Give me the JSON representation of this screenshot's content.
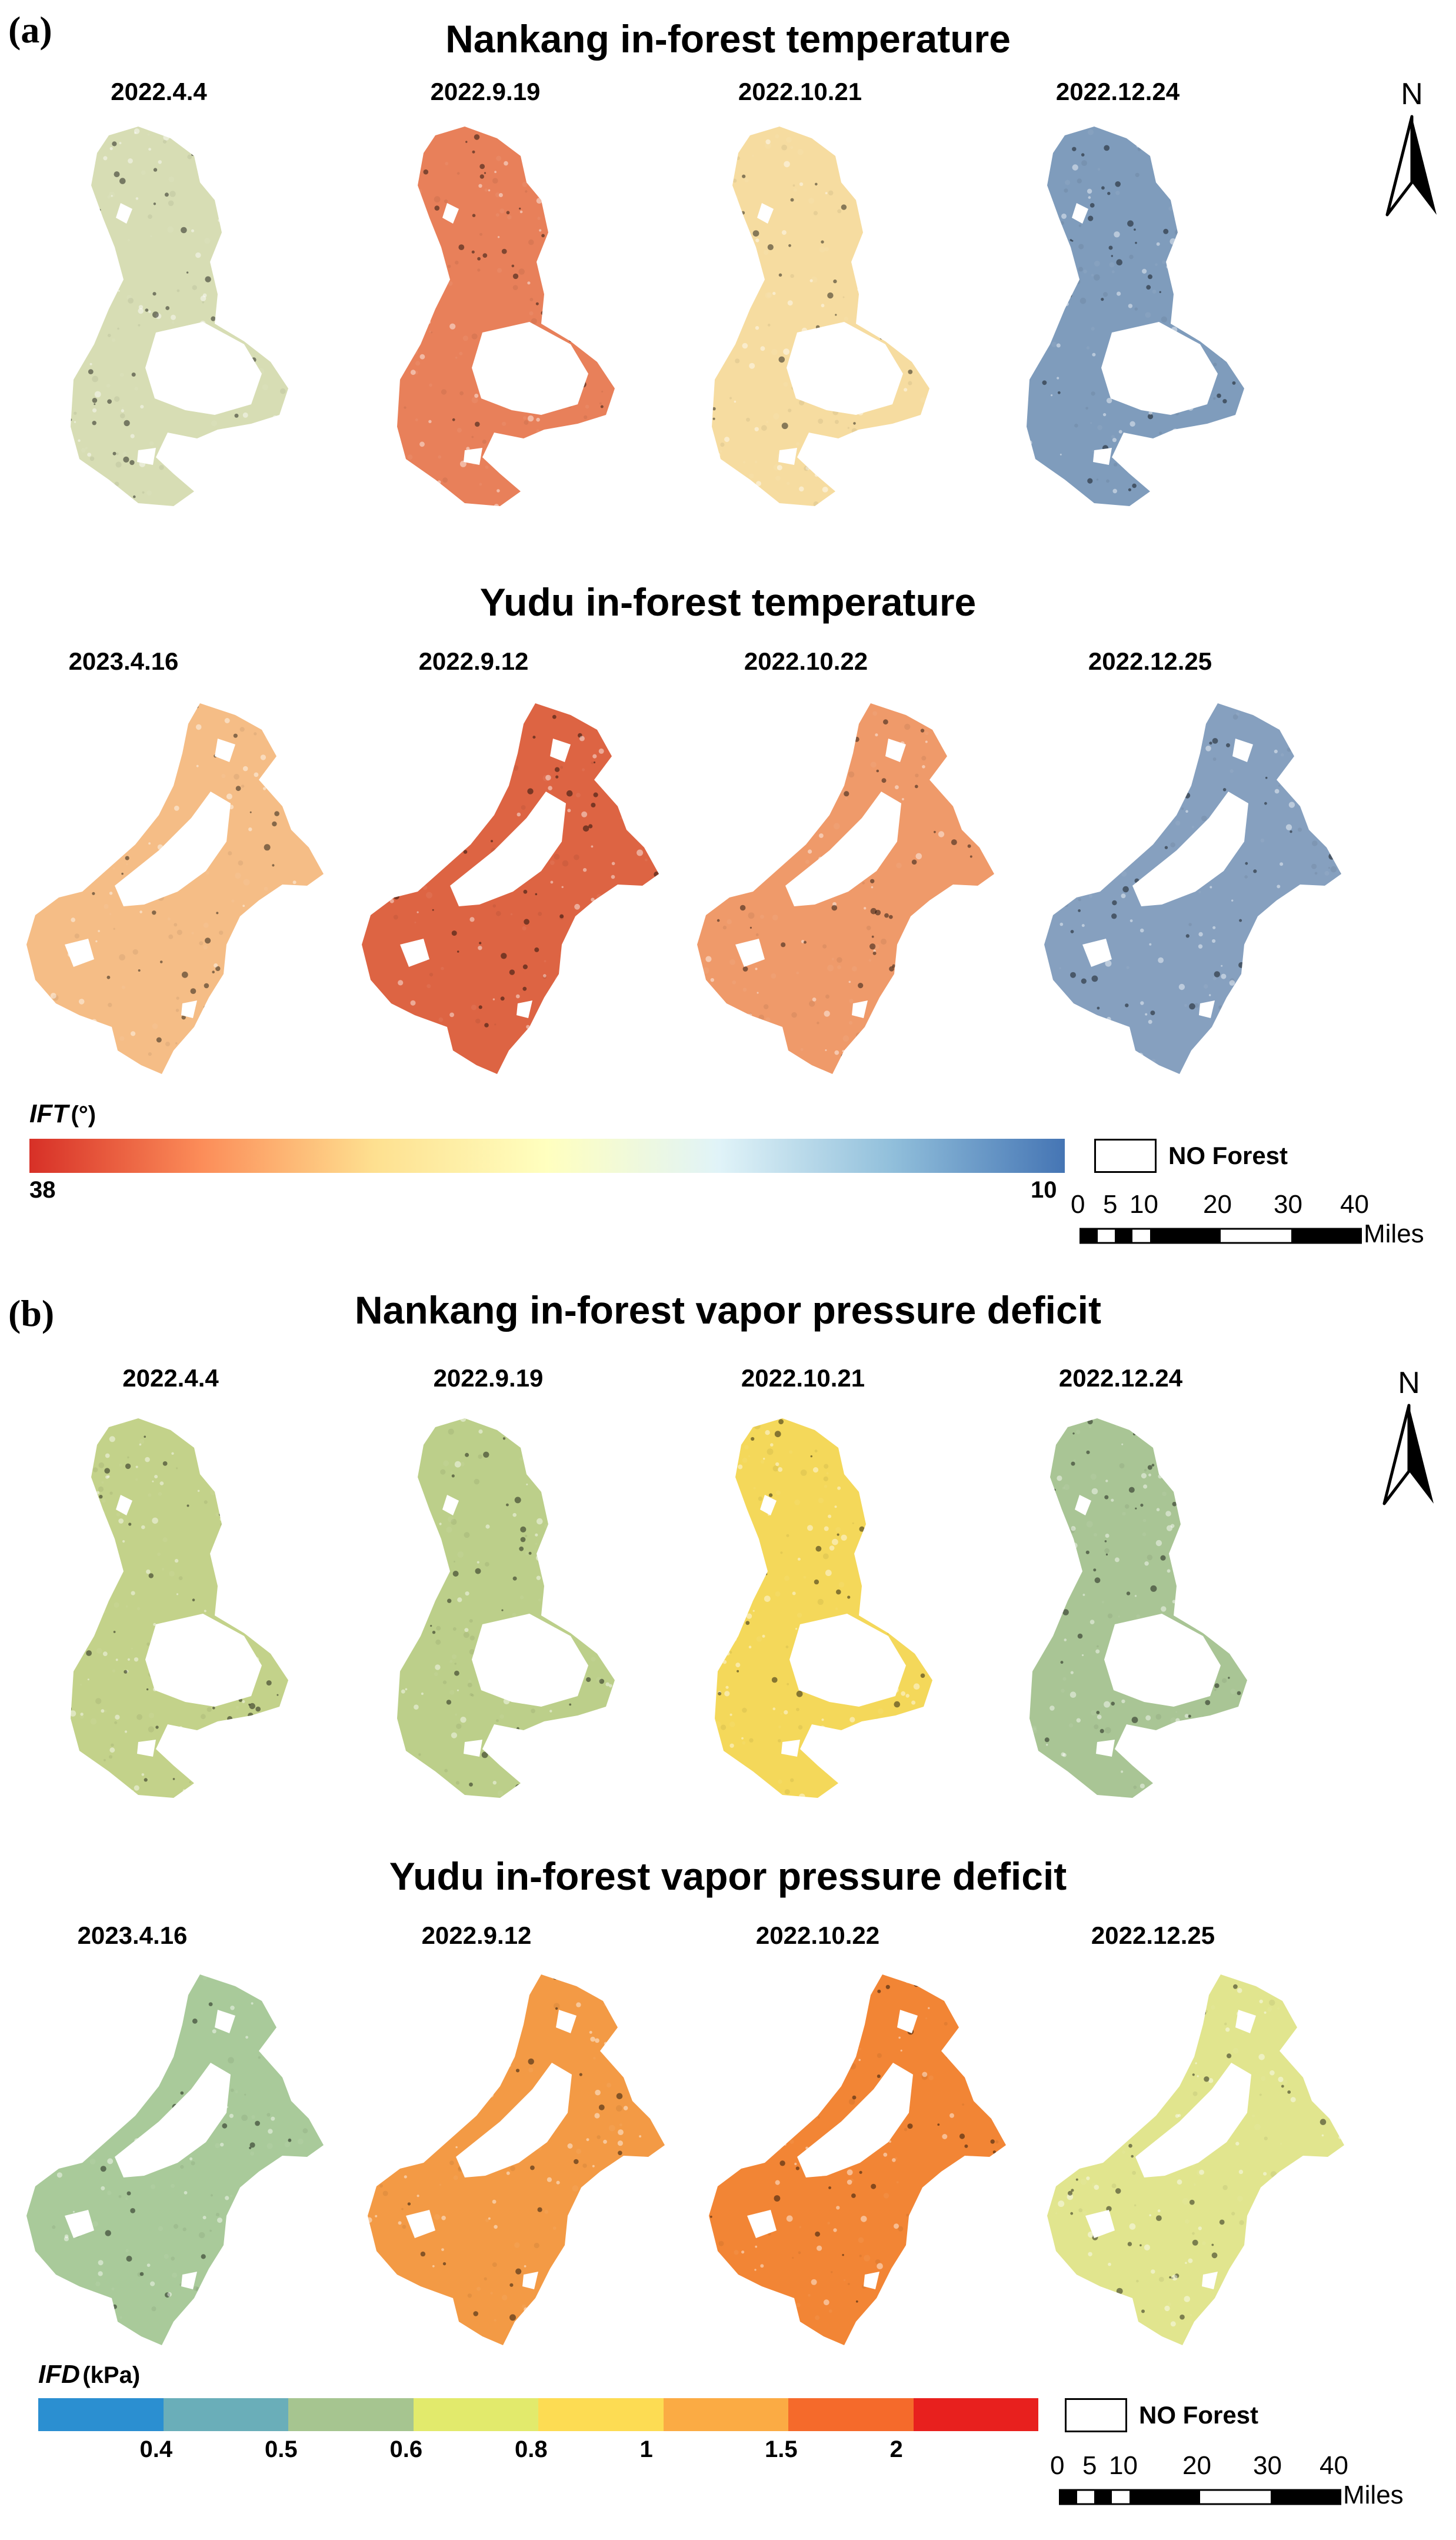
{
  "panel_a": {
    "letter": "(a)",
    "nankang_title": "Nankang in-forest temperature",
    "nankang_dates": [
      "2022.4.4",
      "2022.9.19",
      "2022.10.21",
      "2022.12.24"
    ],
    "yudu_title": "Yudu in-forest temperature",
    "yudu_dates": [
      "2023.4.16",
      "2022.9.12",
      "2022.10.22",
      "2022.12.25"
    ],
    "nankang_colors": [
      "#d7ddb4",
      "#e8805a",
      "#f6dca0",
      "#7f9cbc"
    ],
    "yudu_colors": [
      "#f5bd86",
      "#dd6443",
      "#ef9a6a",
      "#86a0bf"
    ],
    "legend": {
      "title": "IFT",
      "unit": "(°)",
      "min_label": "38",
      "max_label": "10",
      "gradient": [
        "#d73027",
        "#fc8d59",
        "#fee090",
        "#ffffbf",
        "#e0f3f8",
        "#91bfdb",
        "#4575b4"
      ]
    },
    "no_forest": "NO Forest",
    "north": "N",
    "scale": {
      "ticks": [
        "0",
        "5",
        "10",
        "20",
        "30",
        "40"
      ],
      "unit": "Miles"
    }
  },
  "panel_b": {
    "letter": "(b)",
    "nankang_title": "Nankang in-forest vapor pressure deficit",
    "nankang_dates": [
      "2022.4.4",
      "2022.9.19",
      "2022.10.21",
      "2022.12.24"
    ],
    "yudu_title": "Yudu in-forest vapor pressure deficit",
    "yudu_dates": [
      "2023.4.16",
      "2022.9.12",
      "2022.10.22",
      "2022.12.25"
    ],
    "nankang_colors": [
      "#c3d28a",
      "#bccf8a",
      "#f4d85a",
      "#a9c595"
    ],
    "yudu_colors": [
      "#a9ca9a",
      "#f39a45",
      "#f28535",
      "#e1e58e"
    ],
    "legend": {
      "title": "IFD",
      "unit": "(kPa)",
      "classes": [
        "#2b8fd1",
        "#6aaeb9",
        "#a6c590",
        "#e2ea6c",
        "#fddc53",
        "#fbab44",
        "#f56a2b",
        "#e8201e"
      ],
      "ticks": [
        "0.4",
        "0.5",
        "0.6",
        "0.8",
        "1",
        "1.5",
        "2"
      ]
    },
    "no_forest": "NO Forest",
    "north": "N",
    "scale": {
      "ticks": [
        "0",
        "5",
        "10",
        "20",
        "30",
        "40"
      ],
      "unit": "Miles"
    }
  }
}
